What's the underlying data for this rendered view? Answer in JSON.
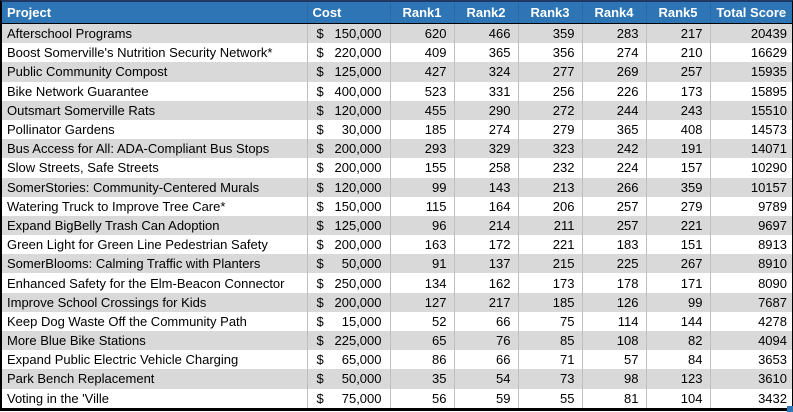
{
  "table": {
    "currency_symbol": "$",
    "columns": [
      {
        "label": "Project"
      },
      {
        "label": "Cost"
      },
      {
        "label": "Rank1"
      },
      {
        "label": "Rank2"
      },
      {
        "label": "Rank3"
      },
      {
        "label": "Rank4"
      },
      {
        "label": "Rank5"
      },
      {
        "label": "Total Score"
      }
    ],
    "rows": [
      {
        "project": "Afterschool Programs",
        "cost": "150,000",
        "ranks": [
          620,
          466,
          359,
          283,
          217
        ],
        "total": 20439
      },
      {
        "project": "Boost Somerville's Nutrition Security Network*",
        "cost": "220,000",
        "ranks": [
          409,
          365,
          356,
          274,
          210
        ],
        "total": 16629
      },
      {
        "project": "Public Community Compost",
        "cost": "125,000",
        "ranks": [
          427,
          324,
          277,
          269,
          257
        ],
        "total": 15935
      },
      {
        "project": "Bike Network Guarantee",
        "cost": "400,000",
        "ranks": [
          523,
          331,
          256,
          226,
          173
        ],
        "total": 15895
      },
      {
        "project": "Outsmart Somerville Rats",
        "cost": "120,000",
        "ranks": [
          455,
          290,
          272,
          244,
          243
        ],
        "total": 15510
      },
      {
        "project": "Pollinator Gardens",
        "cost": "30,000",
        "ranks": [
          185,
          274,
          279,
          365,
          408
        ],
        "total": 14573
      },
      {
        "project": "Bus Access for All: ADA-Compliant Bus Stops",
        "cost": "200,000",
        "ranks": [
          293,
          329,
          323,
          242,
          191
        ],
        "total": 14071
      },
      {
        "project": "Slow Streets, Safe Streets",
        "cost": "200,000",
        "ranks": [
          155,
          258,
          232,
          224,
          157
        ],
        "total": 10290
      },
      {
        "project": "SomerStories: Community-Centered Murals",
        "cost": "120,000",
        "ranks": [
          99,
          143,
          213,
          266,
          359
        ],
        "total": 10157
      },
      {
        "project": "Watering Truck to Improve Tree Care*",
        "cost": "150,000",
        "ranks": [
          115,
          164,
          206,
          257,
          279
        ],
        "total": 9789
      },
      {
        "project": "Expand BigBelly Trash Can Adoption",
        "cost": "125,000",
        "ranks": [
          96,
          214,
          211,
          257,
          221
        ],
        "total": 9697
      },
      {
        "project": "Green Light for Green Line Pedestrian Safety",
        "cost": "200,000",
        "ranks": [
          163,
          172,
          221,
          183,
          151
        ],
        "total": 8913
      },
      {
        "project": "SomerBlooms: Calming Traffic with Planters",
        "cost": "50,000",
        "ranks": [
          91,
          137,
          215,
          225,
          267
        ],
        "total": 8910
      },
      {
        "project": "Enhanced Safety for the Elm-Beacon Connector",
        "cost": "250,000",
        "ranks": [
          134,
          162,
          173,
          178,
          171
        ],
        "total": 8090
      },
      {
        "project": "Improve School Crossings for Kids",
        "cost": "200,000",
        "ranks": [
          127,
          217,
          185,
          126,
          99
        ],
        "total": 7687
      },
      {
        "project": "Keep Dog Waste Off the Community Path",
        "cost": "15,000",
        "ranks": [
          52,
          66,
          75,
          114,
          144
        ],
        "total": 4278
      },
      {
        "project": "More Blue Bike Stations",
        "cost": "225,000",
        "ranks": [
          65,
          76,
          85,
          108,
          82
        ],
        "total": 4094
      },
      {
        "project": "Expand Public Electric Vehicle Charging",
        "cost": "65,000",
        "ranks": [
          86,
          66,
          71,
          57,
          84
        ],
        "total": 3653
      },
      {
        "project": "Park Bench Replacement",
        "cost": "50,000",
        "ranks": [
          35,
          54,
          73,
          98,
          123
        ],
        "total": 3610
      },
      {
        "project": "Voting in the 'Ville",
        "cost": "75,000",
        "ranks": [
          56,
          59,
          55,
          81,
          104
        ],
        "total": 3432
      }
    ]
  },
  "colors": {
    "header_bg": "#2E75B6",
    "header_text": "#FFFFFF",
    "alt_row_bg": "#D9D9D9",
    "grid_line": "#BFBFBF",
    "outer_border": "#000000",
    "top_border": "#1F3864",
    "fill_handle": "#2E75B6"
  }
}
